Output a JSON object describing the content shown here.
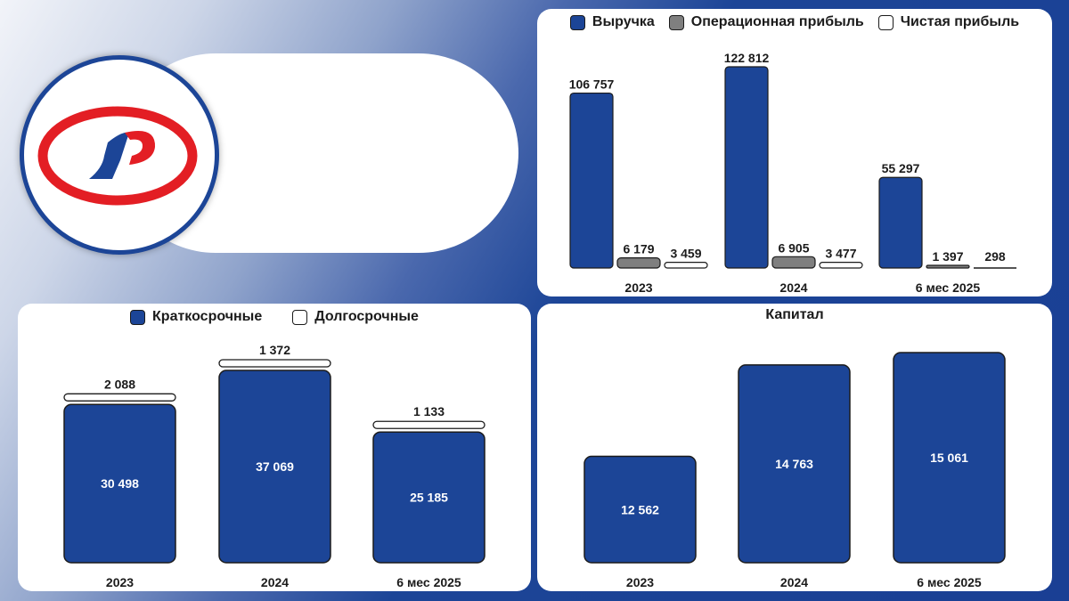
{
  "colors": {
    "primary": "#1c4597",
    "operational": "#7f7f7f",
    "white": "#ffffff",
    "logo_red": "#e31e24",
    "outline": "#1b1b1b"
  },
  "logo": {
    "icon": "company-logo-icon"
  },
  "chart_data": [
    {
      "type": "bar",
      "categories": [
        "2023",
        "2024",
        "6 мес 2025"
      ],
      "series": [
        {
          "name": "Выручка",
          "values": [
            106757,
            122812,
            55297
          ],
          "labels": [
            "106 757",
            "122 812",
            "55 297"
          ],
          "color": "#1c4597"
        },
        {
          "name": "Операционная прибыль",
          "values": [
            6179,
            6905,
            1397
          ],
          "labels": [
            "6 179",
            "6 905",
            "1 397"
          ],
          "color": "#7f7f7f"
        },
        {
          "name": "Чистая прибыль",
          "values": [
            3459,
            3477,
            298
          ],
          "labels": [
            "3 459",
            "3 477",
            "298"
          ],
          "color": "#ffffff"
        }
      ],
      "legend_position": "top"
    },
    {
      "type": "bar",
      "stacked": true,
      "categories": [
        "2023",
        "2024",
        "6 мес 2025"
      ],
      "series": [
        {
          "name": "Краткосрочные",
          "values": [
            30498,
            37069,
            25185
          ],
          "labels": [
            "30 498",
            "37 069",
            "25 185"
          ],
          "color": "#1c4597"
        },
        {
          "name": "Долгосрочные",
          "values": [
            2088,
            1372,
            1133
          ],
          "labels": [
            "2 088",
            "1 372",
            "1 133"
          ],
          "color": "#ffffff"
        }
      ],
      "legend_position": "top"
    },
    {
      "type": "bar",
      "title": "Капитал",
      "categories": [
        "2023",
        "2024",
        "6 мес 2025"
      ],
      "values": [
        12562,
        14763,
        15061
      ],
      "labels": [
        "12 562",
        "14 763",
        "15 061"
      ],
      "color": "#1c4597"
    }
  ]
}
